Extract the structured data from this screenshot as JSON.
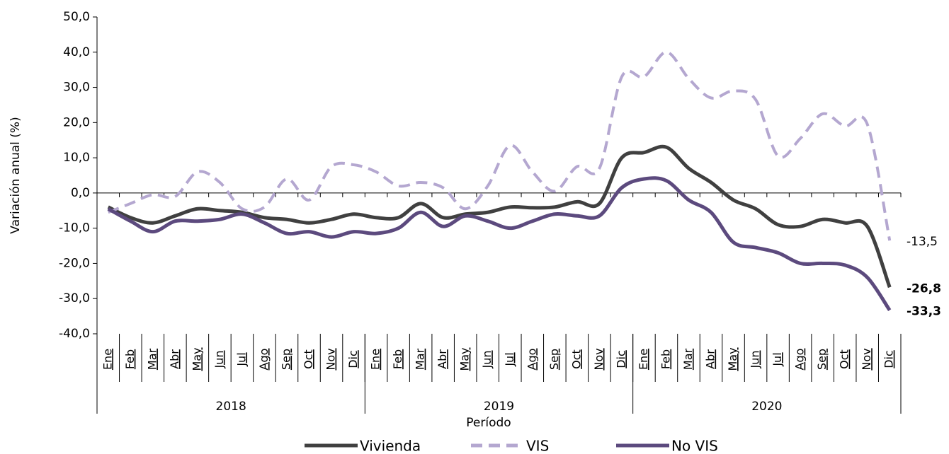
{
  "chart_data": {
    "type": "line",
    "y_label": "Variación anual (%)",
    "x_label": "Período",
    "categories": [
      "Ene",
      "Feb",
      "Mar",
      "Abr",
      "May",
      "Jun",
      "Jul",
      "Ago",
      "Sep",
      "Oct",
      "Nov",
      "Dic",
      "Ene",
      "Feb",
      "Mar",
      "Abr",
      "May",
      "Jun",
      "Jul",
      "Ago",
      "Sep",
      "Oct",
      "Nov",
      "Dic",
      "Ene",
      "Feb",
      "Mar",
      "Abr",
      "May",
      "Jun",
      "Jul",
      "Ago",
      "Sep",
      "Oct",
      "Nov",
      "Dic"
    ],
    "year_groups": [
      "2018",
      "2019",
      "2020"
    ],
    "ylim": [
      -40,
      50
    ],
    "yticks": [
      {
        "value": -40,
        "label": "-40,0"
      },
      {
        "value": -30,
        "label": "-30,0"
      },
      {
        "value": -20,
        "label": "-20,0"
      },
      {
        "value": -10,
        "label": "-10,0"
      },
      {
        "value": 0,
        "label": "0,0"
      },
      {
        "value": 10,
        "label": "10,0"
      },
      {
        "value": 20,
        "label": "20,0"
      },
      {
        "value": 30,
        "label": "30,0"
      },
      {
        "value": 40,
        "label": "40,0"
      },
      {
        "value": 50,
        "label": "50,0"
      }
    ],
    "series": [
      {
        "name": "Vivienda",
        "color": "#404040",
        "dashed": false,
        "values": [
          -4,
          -7,
          -8.5,
          -6.5,
          -4.5,
          -5,
          -5.5,
          -7,
          -7.5,
          -8.5,
          -7.5,
          -6,
          -7,
          -7,
          -3,
          -7,
          -6,
          -5.5,
          -4,
          -4.2,
          -4,
          -2.5,
          -3,
          10,
          11.5,
          13,
          7,
          3,
          -2,
          -4.5,
          -9,
          -9.5,
          -7.5,
          -8.5,
          -9.5,
          -26.8
        ],
        "end_label": "-26,8"
      },
      {
        "name": "VIS",
        "color": "#b4a7d0",
        "dashed": true,
        "values": [
          -5.5,
          -3,
          -0.5,
          -1,
          6,
          3,
          -4.5,
          -4,
          4,
          -2,
          7.5,
          8,
          6,
          2,
          3,
          1.5,
          -4.5,
          2,
          13.5,
          6,
          0.5,
          7.5,
          7,
          33,
          33,
          40,
          32.5,
          27,
          29,
          26.5,
          10.5,
          15.5,
          22.5,
          19,
          19.5,
          -13.5
        ],
        "end_label": "-13,5"
      },
      {
        "name": "No VIS",
        "color": "#5c4a7e",
        "dashed": false,
        "values": [
          -4.5,
          -8,
          -11,
          -8,
          -8,
          -7.5,
          -6,
          -8.5,
          -11.5,
          -11,
          -12.5,
          -11,
          -11.5,
          -10,
          -5.5,
          -9.5,
          -6.5,
          -8,
          -10,
          -8,
          -6,
          -6.5,
          -6.5,
          1.5,
          4,
          3.5,
          -2,
          -5.5,
          -14,
          -15.5,
          -17,
          -20,
          -20,
          -20.5,
          -24,
          -33.3
        ],
        "end_label": "-33,3"
      }
    ]
  }
}
